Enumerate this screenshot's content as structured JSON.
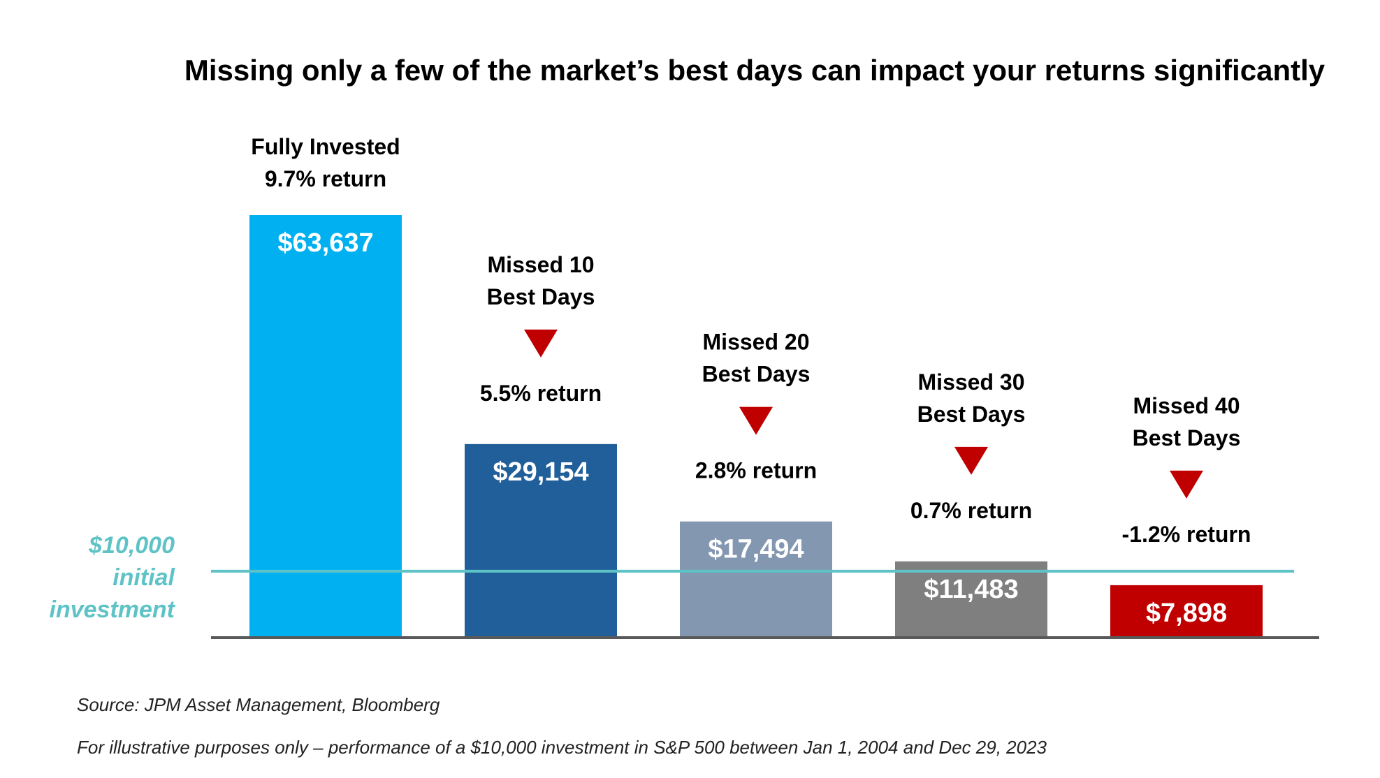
{
  "chart_data": {
    "type": "bar",
    "title": "Missing only a few of the market’s best days can impact your returns significantly",
    "xlabel": "",
    "ylabel": "",
    "ylim": [
      0,
      63637
    ],
    "grid": false,
    "legend": "none",
    "bars": [
      {
        "label_lines": [
          "Fully Invested",
          "9.7% return"
        ],
        "return_text": "",
        "value": 63637,
        "value_label": "$63,637",
        "color": "#00b0f0",
        "return_color": "#000000",
        "arrow": false
      },
      {
        "label_lines": [
          "Missed 10",
          "Best Days"
        ],
        "return_text": "5.5% return",
        "value": 29154,
        "value_label": "$29,154",
        "color": "#215f9a",
        "return_color": "#000000",
        "arrow": true
      },
      {
        "label_lines": [
          "Missed 20",
          "Best Days"
        ],
        "return_text": "2.8% return",
        "value": 17494,
        "value_label": "$17,494",
        "color": "#8497b0",
        "return_color": "#000000",
        "arrow": true
      },
      {
        "label_lines": [
          "Missed 30",
          "Best Days"
        ],
        "return_text": "0.7% return",
        "value": 11483,
        "value_label": "$11,483",
        "color": "#7f7f7f",
        "return_color": "#000000",
        "arrow": true
      },
      {
        "label_lines": [
          "Missed 40",
          "Best Days"
        ],
        "return_text": "-1.2% return",
        "value": 7898,
        "value_label": "$7,898",
        "color": "#c00000",
        "return_color": "#c55a11",
        "arrow": true
      }
    ],
    "reference_line": {
      "value": 10000,
      "label_lines": [
        "$10,000",
        "initial",
        "investment"
      ],
      "color": "#5ec3c6"
    },
    "arrow_color": "#c00000",
    "axis_color": "#595959"
  },
  "footer": {
    "source": "Source: JPM Asset Management, Bloomberg",
    "disclaimer": "For illustrative purposes only – performance of a $10,000 investment in S&P 500 between Jan 1, 2004 and Dec 29, 2023"
  }
}
